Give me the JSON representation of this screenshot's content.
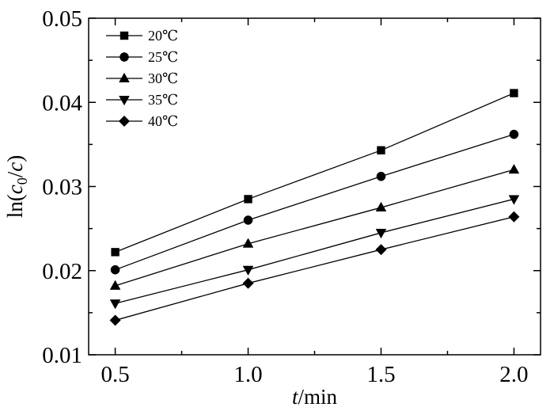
{
  "chart_data": {
    "type": "line",
    "title": "",
    "xlabel": {
      "italic": "t",
      "rest": "/min"
    },
    "ylabel": {
      "prefix": "ln(",
      "c0": "c",
      "sub": "0",
      "slash": "/",
      "c": "c",
      "suffix": ")"
    },
    "x": [
      0.5,
      1.0,
      1.5,
      2.0
    ],
    "xlim": [
      0.4,
      2.1
    ],
    "ylim": [
      0.01,
      0.05
    ],
    "xticks": [
      0.5,
      1.0,
      1.5,
      2.0
    ],
    "xtick_labels": [
      "0.5",
      "1.0",
      "1.5",
      "2.0"
    ],
    "yticks": [
      0.01,
      0.02,
      0.03,
      0.04,
      0.05
    ],
    "ytick_labels": [
      "0.01",
      "0.02",
      "0.03",
      "0.04",
      "0.05"
    ],
    "grid": false,
    "legend_position": "top-left",
    "series": [
      {
        "name": "20℃",
        "marker": "square",
        "values": [
          0.0222,
          0.0285,
          0.0343,
          0.0411
        ]
      },
      {
        "name": "25℃",
        "marker": "circle",
        "values": [
          0.0201,
          0.026,
          0.0312,
          0.0362
        ]
      },
      {
        "name": "30℃",
        "marker": "triangle-up",
        "values": [
          0.0182,
          0.0232,
          0.0275,
          0.032
        ]
      },
      {
        "name": "35℃",
        "marker": "triangle-down",
        "values": [
          0.0161,
          0.0201,
          0.0245,
          0.0285
        ]
      },
      {
        "name": "40℃",
        "marker": "diamond",
        "values": [
          0.0141,
          0.0185,
          0.0225,
          0.0264
        ]
      }
    ],
    "colors": {
      "line": "#000000",
      "marker": "#000000",
      "axis": "#000000"
    }
  }
}
